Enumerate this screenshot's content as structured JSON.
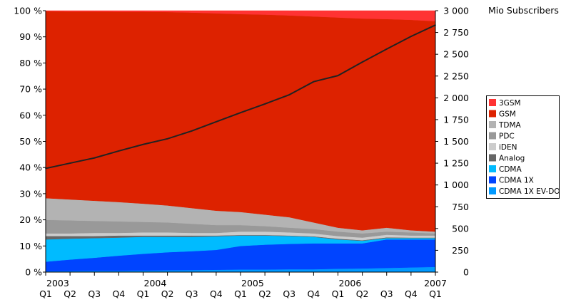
{
  "chart_data": {
    "type": "area",
    "stacked_percent": true,
    "x": [
      "2003 Q1",
      "2003 Q2",
      "2003 Q3",
      "2003 Q4",
      "2004 Q1",
      "2004 Q2",
      "2004 Q3",
      "2004 Q4",
      "2005 Q1",
      "2005 Q2",
      "2005 Q3",
      "2005 Q4",
      "2006 Q1",
      "2006 Q2",
      "2006 Q3",
      "2006 Q4",
      "2007 Q1"
    ],
    "x_tick_labels": [
      "Q1",
      "Q2",
      "Q3",
      "Q4",
      "Q1",
      "Q2",
      "Q3",
      "Q4",
      "Q1",
      "Q2",
      "Q3",
      "Q4",
      "Q1",
      "Q2",
      "Q3",
      "Q4",
      "Q1"
    ],
    "year_labels": [
      {
        "label": "2003",
        "index": 0
      },
      {
        "label": "2004",
        "index": 4
      },
      {
        "label": "2005",
        "index": 8
      },
      {
        "label": "2006",
        "index": 12
      },
      {
        "label": "2007",
        "index": 16
      }
    ],
    "ylim": [
      0,
      100
    ],
    "y_tick_labels": [
      "0 %",
      "10 %",
      "20 %",
      "30 %",
      "40 %",
      "50 %",
      "60 %",
      "70 %",
      "80 %",
      "90 %",
      "100 %"
    ],
    "y2lim": [
      0,
      3000
    ],
    "y2label": "Mio Subscribers",
    "y2_tick_labels": [
      "0",
      "250",
      "500",
      "750",
      "1 000",
      "1 250",
      "1 500",
      "1 750",
      "2 000",
      "2 250",
      "2 500",
      "2 750",
      "3 000"
    ],
    "legend_position": "right",
    "series": [
      {
        "name": "CDMA 1X EV-DO",
        "color": "#0099ff",
        "values": [
          0.3,
          0.4,
          0.5,
          0.5,
          0.6,
          0.7,
          0.8,
          0.9,
          1.0,
          1.0,
          1.1,
          1.1,
          1.3,
          1.4,
          1.6,
          1.8,
          2.0
        ]
      },
      {
        "name": "CDMA 1X",
        "color": "#0044ff",
        "values": [
          3.7,
          4.4,
          5.0,
          5.8,
          6.4,
          6.9,
          7.2,
          7.6,
          9.0,
          9.5,
          9.7,
          9.9,
          9.7,
          9.6,
          10.9,
          10.7,
          10.5
        ]
      },
      {
        "name": "CDMA",
        "color": "#00bbff",
        "values": [
          8.5,
          8.0,
          7.5,
          6.9,
          6.5,
          5.9,
          5.5,
          5.2,
          4.0,
          3.5,
          3.0,
          2.5,
          1.5,
          1.0,
          0.5,
          0.5,
          0.5
        ]
      },
      {
        "name": "Analog",
        "color": "#666666",
        "values": [
          1.3,
          1.0,
          0.8,
          0.8,
          0.5,
          0.5,
          0.5,
          0.3,
          0.2,
          0.2,
          0.2,
          0.2,
          0.3,
          0.2,
          0.3,
          0.2,
          0.2
        ]
      },
      {
        "name": "iDEN",
        "color": "#cccccc",
        "values": [
          1.0,
          1.0,
          1.2,
          1.0,
          1.2,
          1.2,
          1.0,
          1.0,
          1.3,
          1.3,
          1.2,
          1.1,
          1.0,
          1.0,
          1.0,
          0.8,
          0.8
        ]
      },
      {
        "name": "PDC",
        "color": "#999999",
        "values": [
          5.2,
          5.0,
          4.6,
          4.4,
          4.0,
          3.8,
          3.5,
          3.0,
          2.5,
          2.1,
          1.8,
          1.7,
          1.7,
          1.6,
          1.2,
          1.2,
          0.8
        ]
      },
      {
        "name": "TDMA",
        "color": "#b3b3b3",
        "values": [
          8.3,
          8.0,
          7.7,
          7.4,
          7.0,
          6.5,
          6.0,
          5.5,
          5.0,
          4.4,
          4.0,
          2.5,
          1.5,
          1.2,
          1.5,
          0.8,
          0.7
        ]
      },
      {
        "name": "GSM",
        "color": "#dd2200",
        "values": [
          71.5,
          71.9,
          72.4,
          72.8,
          73.4,
          74.0,
          74.8,
          75.5,
          75.7,
          76.5,
          77.2,
          78.8,
          80.4,
          81.0,
          79.8,
          80.5,
          80.5
        ]
      },
      {
        "name": "3GSM",
        "color": "#ff3333",
        "values": [
          0.2,
          0.3,
          0.3,
          0.4,
          0.4,
          0.5,
          0.7,
          1.0,
          1.3,
          1.5,
          1.8,
          2.2,
          2.6,
          3.0,
          3.2,
          3.5,
          4.0
        ]
      }
    ],
    "line": {
      "axis": "right",
      "color": "#222222",
      "values": [
        1190,
        1250,
        1310,
        1390,
        1465,
        1530,
        1620,
        1725,
        1830,
        1930,
        2035,
        2185,
        2255,
        2410,
        2560,
        2705,
        2835
      ]
    },
    "legend_order": [
      "3GSM",
      "GSM",
      "TDMA",
      "PDC",
      "iDEN",
      "Analog",
      "CDMA",
      "CDMA 1X",
      "CDMA 1X EV-DO"
    ]
  }
}
